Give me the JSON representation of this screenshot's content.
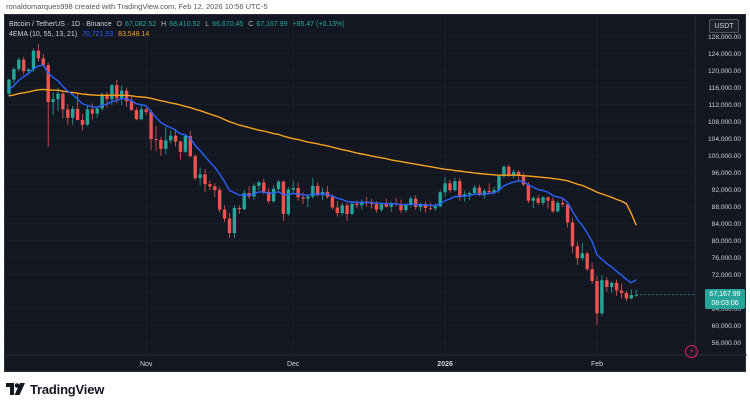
{
  "header": {
    "created_by": "ronaldomarques998 created with TradingView.com, Feb 12, 2026 10:56 UTC-5"
  },
  "legend": {
    "symbol": "Bitcoin / TetherUS · 1D · Binance",
    "open_label": "O",
    "open": "67,082.52",
    "high_label": "H",
    "high": "68,410.52",
    "low_label": "L",
    "low": "66,670.45",
    "close_label": "C",
    "close": "67,167.99",
    "change": "+85.47 (+0.13%)",
    "ema_label": "4EMA (10, 55, 13, 21)",
    "ema1": "70,721.53",
    "ema2": "83,548.14"
  },
  "currency_button": "USDT",
  "price_tag": {
    "price": "67,167.99",
    "countdown": "08:03:06"
  },
  "logo_text": "TradingView",
  "colors": {
    "background": "#131722",
    "grid": "#1e222d",
    "up": "#26a69a",
    "down": "#ef5350",
    "ema_fast": "#2962ff",
    "ema_slow": "#f7a21b",
    "axis_text": "#d1d4dc"
  },
  "chart_data": {
    "type": "candlestick",
    "symbol": "BTCUSDT",
    "interval": "1D",
    "y_ticks": [
      56000,
      60000,
      64000,
      68000,
      72000,
      76000,
      80000,
      84000,
      88000,
      92000,
      96000,
      100000,
      104000,
      108000,
      112000,
      116000,
      120000,
      124000,
      128000
    ],
    "y_tick_labels": [
      "56,000.00",
      "60,000.00",
      "64,000.00",
      "68,000.00",
      "72,000.00",
      "76,000.00",
      "80,000.00",
      "84,000.00",
      "88,000.00",
      "92,000.00",
      "96,000.00",
      "100,000.00",
      "104,000.00",
      "108,000.00",
      "112,000.00",
      "116,000.00",
      "120,000.00",
      "124,000.00",
      "128,000.00"
    ],
    "ylim": [
      53000,
      133000
    ],
    "x_labels": [
      {
        "label": "Nov",
        "index": 28
      },
      {
        "label": "Dec",
        "index": 58
      },
      {
        "label": "2026",
        "index": 89
      },
      {
        "label": "Feb",
        "index": 120
      }
    ],
    "ohlc": [
      [
        114500,
        118000,
        113800,
        117800
      ],
      [
        117800,
        120800,
        117000,
        120300
      ],
      [
        120300,
        123000,
        119800,
        122500
      ],
      [
        122500,
        123200,
        119000,
        119800
      ],
      [
        119800,
        120500,
        119000,
        120200
      ],
      [
        120200,
        125200,
        119600,
        124600
      ],
      [
        124600,
        126200,
        122000,
        122800
      ],
      [
        122800,
        123800,
        120800,
        121200
      ],
      [
        121200,
        121800,
        102000,
        112500
      ],
      [
        112500,
        114800,
        109500,
        113200
      ],
      [
        113200,
        115800,
        110500,
        114500
      ],
      [
        114500,
        115000,
        108600,
        110800
      ],
      [
        110800,
        112000,
        107200,
        108800
      ],
      [
        108800,
        111600,
        107200,
        110900
      ],
      [
        110900,
        114600,
        108700,
        108300
      ],
      [
        108300,
        109700,
        105800,
        107200
      ],
      [
        107200,
        111800,
        106900,
        110800
      ],
      [
        110800,
        112200,
        108400,
        109800
      ],
      [
        109800,
        111500,
        108800,
        111000
      ],
      [
        111000,
        114700,
        110500,
        114300
      ],
      [
        114300,
        114900,
        111200,
        113200
      ],
      [
        113200,
        116800,
        111800,
        116500
      ],
      [
        116500,
        117800,
        112200,
        113400
      ],
      [
        113400,
        116400,
        111800,
        115200
      ],
      [
        115200,
        115900,
        111300,
        112700
      ],
      [
        112700,
        113900,
        110500,
        110600
      ],
      [
        110600,
        111200,
        108300,
        108500
      ],
      [
        108500,
        111800,
        108200,
        110800
      ],
      [
        110800,
        111200,
        109500,
        110200
      ],
      [
        110200,
        110800,
        101200,
        103800
      ],
      [
        103800,
        106800,
        101000,
        103600
      ],
      [
        103600,
        104300,
        99900,
        101500
      ],
      [
        101500,
        106600,
        100200,
        103500
      ],
      [
        103500,
        105800,
        102800,
        104600
      ],
      [
        104600,
        106200,
        102100,
        103200
      ],
      [
        103200,
        103500,
        99000,
        100800
      ],
      [
        100800,
        104900,
        100500,
        104500
      ],
      [
        104500,
        105700,
        99500,
        99800
      ],
      [
        99800,
        100200,
        94200,
        94600
      ],
      [
        94600,
        97100,
        92900,
        95500
      ],
      [
        95500,
        96800,
        91300,
        93200
      ],
      [
        93200,
        94100,
        91800,
        92700
      ],
      [
        92700,
        93400,
        90200,
        91800
      ],
      [
        91800,
        92500,
        86600,
        87200
      ],
      [
        87200,
        88200,
        84300,
        85100
      ],
      [
        85100,
        86400,
        80600,
        81700
      ],
      [
        81700,
        88200,
        80600,
        87600
      ],
      [
        87600,
        88200,
        86200,
        87300
      ],
      [
        87300,
        91800,
        87100,
        91100
      ],
      [
        91100,
        92700,
        89700,
        90300
      ],
      [
        90300,
        93400,
        89500,
        92800
      ],
      [
        92800,
        94000,
        91800,
        93600
      ],
      [
        93600,
        94500,
        90800,
        91400
      ],
      [
        91400,
        92300,
        88600,
        89200
      ],
      [
        89200,
        92900,
        88800,
        92100
      ],
      [
        92100,
        94200,
        91700,
        93800
      ],
      [
        93800,
        94100,
        84500,
        86200
      ],
      [
        86200,
        92500,
        85700,
        91900
      ],
      [
        91900,
        94000,
        91100,
        92300
      ],
      [
        92300,
        93600,
        89300,
        90100
      ],
      [
        90100,
        91300,
        88500,
        89800
      ],
      [
        89800,
        90500,
        87800,
        90300
      ],
      [
        90300,
        94700,
        89800,
        92800
      ],
      [
        92800,
        93700,
        90300,
        90600
      ],
      [
        90600,
        92400,
        89400,
        91400
      ],
      [
        91400,
        92800,
        89800,
        90200
      ],
      [
        90200,
        90800,
        87200,
        87700
      ],
      [
        87700,
        89200,
        85600,
        86400
      ],
      [
        86400,
        88900,
        85800,
        88200
      ],
      [
        88200,
        88800,
        84600,
        86200
      ],
      [
        86200,
        88900,
        85900,
        88600
      ],
      [
        88600,
        89400,
        87500,
        88300
      ],
      [
        88300,
        89600,
        87200,
        89100
      ],
      [
        89100,
        90200,
        87900,
        88700
      ],
      [
        88700,
        89700,
        87400,
        88600
      ],
      [
        88600,
        89200,
        86500,
        87200
      ],
      [
        87200,
        88900,
        86700,
        88500
      ],
      [
        88500,
        89800,
        87700,
        87900
      ],
      [
        87900,
        89100,
        86700,
        88700
      ],
      [
        88700,
        89900,
        88100,
        88400
      ],
      [
        88400,
        89600,
        86300,
        87100
      ],
      [
        87100,
        88600,
        86600,
        88300
      ],
      [
        88300,
        90300,
        87700,
        89800
      ],
      [
        89800,
        90600,
        87200,
        87800
      ],
      [
        87800,
        88800,
        86800,
        88500
      ],
      [
        88500,
        89100,
        86500,
        87600
      ],
      [
        87600,
        88800,
        87000,
        87500
      ],
      [
        87500,
        88600,
        86900,
        88000
      ],
      [
        88000,
        91700,
        87700,
        91300
      ],
      [
        91300,
        94800,
        90300,
        93400
      ],
      [
        93400,
        94200,
        91200,
        91800
      ],
      [
        91800,
        94700,
        91500,
        93900
      ],
      [
        93900,
        94600,
        89300,
        90400
      ],
      [
        90400,
        91700,
        89100,
        90800
      ],
      [
        90800,
        91500,
        89400,
        91100
      ],
      [
        91100,
        92900,
        90700,
        92400
      ],
      [
        92400,
        93100,
        90400,
        90600
      ],
      [
        90600,
        92100,
        89800,
        91600
      ],
      [
        91600,
        93400,
        90800,
        91300
      ],
      [
        91300,
        92600,
        90900,
        91800
      ],
      [
        91800,
        95300,
        91100,
        95100
      ],
      [
        95100,
        97600,
        94700,
        97300
      ],
      [
        97300,
        97800,
        94900,
        95300
      ],
      [
        95300,
        96700,
        94600,
        96100
      ],
      [
        96100,
        96500,
        93900,
        95200
      ],
      [
        95200,
        95900,
        92800,
        93100
      ],
      [
        93100,
        93700,
        88700,
        89300
      ],
      [
        89300,
        90400,
        87600,
        89900
      ],
      [
        89900,
        90600,
        88300,
        88800
      ],
      [
        88800,
        90300,
        88200,
        90100
      ],
      [
        90100,
        90300,
        87400,
        89300
      ],
      [
        89300,
        90100,
        86400,
        86800
      ],
      [
        86800,
        89300,
        86500,
        88800
      ],
      [
        88800,
        90100,
        87900,
        88400
      ],
      [
        88400,
        88900,
        83000,
        84200
      ],
      [
        84200,
        85300,
        77000,
        78600
      ],
      [
        78600,
        79700,
        74200,
        75800
      ],
      [
        75800,
        79300,
        75200,
        76900
      ],
      [
        76900,
        77300,
        72800,
        73200
      ],
      [
        73200,
        74700,
        69800,
        70400
      ],
      [
        70400,
        71600,
        60100,
        62800
      ],
      [
        62800,
        71800,
        62300,
        70600
      ],
      [
        70600,
        71300,
        67900,
        69000
      ],
      [
        69000,
        70300,
        67600,
        70000
      ],
      [
        70000,
        70700,
        66900,
        68200
      ],
      [
        68200,
        69800,
        66200,
        67600
      ],
      [
        67600,
        68100,
        65700,
        66300
      ],
      [
        66300,
        68400,
        66100,
        67100
      ],
      [
        67082.52,
        68410.52,
        66670.45,
        67167.99
      ]
    ],
    "ema_fast": [
      115500,
      116400,
      117600,
      118500,
      119200,
      120400,
      121000,
      121200,
      119400,
      118300,
      117500,
      116200,
      115100,
      114300,
      113200,
      112100,
      111700,
      111400,
      111300,
      111800,
      112000,
      112700,
      112900,
      113300,
      113300,
      112800,
      112100,
      111900,
      111600,
      110200,
      108900,
      107700,
      107000,
      106500,
      105900,
      105000,
      104800,
      104000,
      102300,
      101100,
      99700,
      98400,
      97200,
      95600,
      93800,
      91700,
      91200,
      90600,
      90700,
      90600,
      90900,
      91400,
      91300,
      91000,
      91100,
      91400,
      90700,
      90800,
      91000,
      90900,
      90700,
      90600,
      90900,
      90800,
      90900,
      90800,
      90400,
      89900,
      89600,
      89100,
      89000,
      88900,
      88900,
      88900,
      88900,
      88700,
      88700,
      88600,
      88600,
      88600,
      88400,
      88400,
      88500,
      88400,
      88400,
      88300,
      88200,
      88200,
      88600,
      89300,
      89700,
      90300,
      90300,
      90400,
      90500,
      90800,
      90800,
      90900,
      91000,
      91100,
      91800,
      92800,
      93300,
      93700,
      94000,
      93800,
      93000,
      92500,
      91900,
      91700,
      91300,
      90500,
      90200,
      89900,
      88900,
      86800,
      84900,
      83500,
      81700,
      79700,
      76600,
      75500,
      74500,
      73700,
      72700,
      71800,
      70800,
      70000,
      70721.53
    ],
    "ema_slow": [
      114000,
      114200,
      114500,
      114700,
      114900,
      115200,
      115400,
      115500,
      115400,
      115300,
      115300,
      115100,
      114900,
      114800,
      114600,
      114400,
      114300,
      114200,
      114100,
      114100,
      114100,
      114100,
      114100,
      114100,
      114100,
      114000,
      113800,
      113700,
      113600,
      113400,
      113100,
      112800,
      112600,
      112300,
      112100,
      111800,
      111500,
      111200,
      110800,
      110500,
      110100,
      109700,
      109300,
      108900,
      108400,
      107900,
      107500,
      107100,
      106800,
      106500,
      106200,
      105900,
      105700,
      105400,
      105100,
      104900,
      104500,
      104200,
      103900,
      103700,
      103400,
      103100,
      102900,
      102700,
      102400,
      102200,
      101900,
      101600,
      101300,
      101100,
      100800,
      100500,
      100300,
      100100,
      99800,
      99600,
      99400,
      99200,
      98900,
      98700,
      98500,
      98300,
      98100,
      97900,
      97700,
      97500,
      97300,
      97100,
      96900,
      96700,
      96600,
      96400,
      96300,
      96100,
      96000,
      95800,
      95700,
      95600,
      95500,
      95400,
      95300,
      95300,
      95300,
      95300,
      95300,
      95200,
      95100,
      95000,
      94900,
      94800,
      94700,
      94500,
      94400,
      94200,
      94000,
      93600,
      93200,
      92900,
      92400,
      91900,
      91300,
      90900,
      90500,
      90100,
      89600,
      89200,
      88600,
      86300,
      83548.14
    ],
    "last_price": 67167.99
  }
}
